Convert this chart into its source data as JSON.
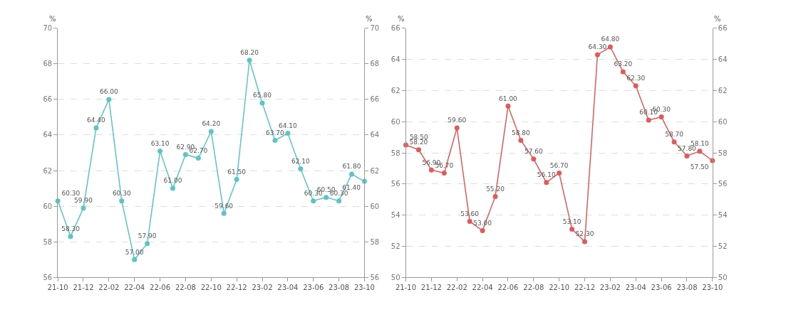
{
  "chart_data": [
    {
      "type": "line",
      "ylabel": "%",
      "y2label": "%",
      "categories": [
        "21-10",
        null,
        "21-12",
        null,
        "22-02",
        null,
        "22-04",
        null,
        "22-06",
        null,
        "22-08",
        null,
        "22-10",
        null,
        "22-12",
        null,
        "23-02",
        null,
        "23-04",
        null,
        "23-06",
        null,
        "23-08",
        null,
        "23-10"
      ],
      "series": [
        {
          "color": "#5bc4c4",
          "values": [
            60.3,
            58.3,
            59.9,
            64.4,
            66.0,
            60.3,
            57.0,
            57.9,
            63.1,
            61.0,
            62.9,
            62.7,
            64.2,
            59.6,
            61.5,
            68.2,
            65.8,
            63.7,
            64.1,
            62.1,
            60.3,
            60.5,
            60.3,
            61.8,
            61.4
          ],
          "value_labels": [
            "60.30",
            "58.30",
            "59.90",
            "64.40",
            "66.00",
            "60.30",
            "57.00",
            "57.90",
            "63.10",
            "61.00",
            "62.90",
            "62.70",
            "64.20",
            "59.60",
            "61.50",
            "68.20",
            "65.80",
            "63.70",
            "64.10",
            "62.10",
            "60.30",
            "60.50",
            "60.30",
            "61.80",
            "61.40"
          ]
        }
      ],
      "ylim": [
        56,
        70
      ],
      "yticks": [
        56,
        58,
        60,
        62,
        64,
        66,
        68,
        70
      ],
      "y2lim": [
        56,
        70
      ],
      "y2ticks": [
        56,
        58,
        60,
        62,
        64,
        66,
        68,
        70
      ],
      "grid": "y",
      "marker": "circle",
      "line_style": "solid"
    },
    {
      "type": "line",
      "ylabel": "%",
      "y2label": "%",
      "categories": [
        "21-10",
        null,
        "21-12",
        null,
        "22-02",
        null,
        "22-04",
        null,
        "22-06",
        null,
        "22-08",
        null,
        "22-10",
        null,
        "22-12",
        null,
        "23-02",
        null,
        "23-04",
        null,
        "23-06",
        null,
        "23-08",
        null,
        "23-10"
      ],
      "series": [
        {
          "color": "#e05a5a",
          "values": [
            58.5,
            58.2,
            56.9,
            56.7,
            59.6,
            53.6,
            53.0,
            55.2,
            61.0,
            58.8,
            57.6,
            56.1,
            56.7,
            53.1,
            52.3,
            64.3,
            64.8,
            63.2,
            62.3,
            60.1,
            60.3,
            58.7,
            57.8,
            58.1,
            57.5
          ],
          "value_labels": [
            "58.50",
            "58.20",
            "56.90",
            "56.70",
            "59.60",
            "53.60",
            "53.00",
            "55.20",
            "61.00",
            "58.80",
            "57.60",
            "56.10",
            "56.70",
            "53.10",
            "52.30",
            "64.30",
            "64.80",
            "63.20",
            "62.30",
            "60.10",
            "60.30",
            "58.70",
            "57.80",
            "58.10",
            "57.50"
          ]
        }
      ],
      "ylim": [
        50,
        66
      ],
      "yticks": [
        50,
        52,
        54,
        56,
        58,
        60,
        62,
        64,
        66
      ],
      "y2lim": [
        50,
        66
      ],
      "y2ticks": [
        50,
        52,
        54,
        56,
        58,
        60,
        62,
        64,
        66
      ],
      "grid": "y",
      "marker": "circle",
      "line_style": "solid"
    }
  ]
}
